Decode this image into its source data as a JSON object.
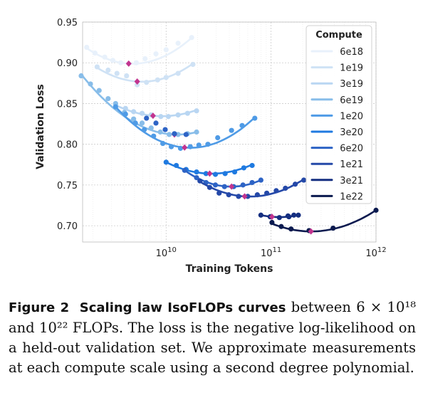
{
  "chart_data": {
    "type": "line",
    "xlabel": "Training Tokens",
    "ylabel": "Validation Loss",
    "xscale": "log",
    "xlim": [
      1600000000.0,
      1000000000000.0
    ],
    "ylim": [
      0.68,
      0.95
    ],
    "yticks": [
      "0.70",
      "0.75",
      "0.80",
      "0.85",
      "0.90",
      "0.95"
    ],
    "xticks": [
      {
        "base": "10",
        "exp": "10",
        "value": 10000000000.0
      },
      {
        "base": "10",
        "exp": "11",
        "value": 100000000000.0
      },
      {
        "base": "10",
        "exp": "12",
        "value": 1000000000000.0
      }
    ],
    "grid": true,
    "legend": {
      "title": "Compute",
      "placement": "top-right"
    },
    "series": [
      {
        "name": "6e18",
        "color": "#e8f1fb",
        "points": [
          [
            1750000000.0,
            0.919
          ],
          [
            2100000000.0,
            0.912
          ],
          [
            2600000000.0,
            0.907
          ],
          [
            3100000000.0,
            0.903
          ],
          [
            3700000000.0,
            0.9
          ],
          [
            4400000000.0,
            0.899
          ],
          [
            5200000000.0,
            0.9
          ],
          [
            6300000000.0,
            0.905
          ],
          [
            8000000000.0,
            0.911
          ],
          [
            10000000000.0,
            0.916
          ],
          [
            13000000000.0,
            0.924
          ],
          [
            17500000000.0,
            0.931
          ]
        ],
        "poly": [
          [
            1750000000.0,
            0.918
          ],
          [
            4400000000.0,
            0.899
          ],
          [
            18000000000.0,
            0.932
          ]
        ],
        "min": [
          4400000000.0,
          0.899
        ]
      },
      {
        "name": "1e19",
        "color": "#cfe2f5",
        "points": [
          [
            2200000000.0,
            0.895
          ],
          [
            2800000000.0,
            0.891
          ],
          [
            3400000000.0,
            0.887
          ],
          [
            4200000000.0,
            0.884
          ],
          [
            5300000000.0,
            0.873
          ],
          [
            6500000000.0,
            0.876
          ],
          [
            8300000000.0,
            0.879
          ],
          [
            10000000000.0,
            0.882
          ],
          [
            13000000000.0,
            0.887
          ],
          [
            18000000000.0,
            0.898
          ]
        ],
        "poly": [
          [
            2200000000.0,
            0.894
          ],
          [
            5300000000.0,
            0.877
          ],
          [
            18000000000.0,
            0.899
          ]
        ],
        "min": [
          5300000000.0,
          0.877
        ]
      },
      {
        "name": "3e19",
        "color": "#b9d6f2",
        "points": [
          [
            3300000000.0,
            0.848
          ],
          [
            4100000000.0,
            0.844
          ],
          [
            4900000000.0,
            0.84
          ],
          [
            5900000000.0,
            0.838
          ],
          [
            7200000000.0,
            0.836
          ],
          [
            8900000000.0,
            0.834
          ],
          [
            10500000000.0,
            0.834
          ],
          [
            13000000000.0,
            0.836
          ],
          [
            16000000000.0,
            0.838
          ],
          [
            19500000000.0,
            0.841
          ]
        ],
        "poly": [
          [
            3300000000.0,
            0.848
          ],
          [
            7500000000.0,
            0.835
          ],
          [
            19500000000.0,
            0.842
          ]
        ],
        "min": [
          7500000000.0,
          0.835
        ]
      },
      {
        "name": "6e19",
        "color": "#88bde9",
        "points": [
          [
            1550000000.0,
            0.884
          ],
          [
            1900000000.0,
            0.874
          ],
          [
            2300000000.0,
            0.866
          ],
          [
            2800000000.0,
            0.856
          ],
          [
            3300000000.0,
            0.85
          ],
          [
            4000000000.0,
            0.839
          ],
          [
            4900000000.0,
            0.831
          ],
          [
            5900000000.0,
            0.826
          ],
          [
            7200000000.0,
            0.82
          ],
          [
            8800000000.0,
            0.815
          ],
          [
            10700000000.0,
            0.812
          ],
          [
            13000000000.0,
            0.812
          ],
          [
            16000000000.0,
            0.813
          ],
          [
            19500000000.0,
            0.815
          ]
        ],
        "poly": [
          [
            1550000000.0,
            0.886
          ],
          [
            12000000000.0,
            0.812
          ],
          [
            19500000000.0,
            0.815
          ]
        ],
        "min": [
          12000000000.0,
          0.812
        ]
      },
      {
        "name": "1e20",
        "color": "#4f9be6",
        "points": [
          [
            3300000000.0,
            0.846
          ],
          [
            4100000000.0,
            0.837
          ],
          [
            5100000000.0,
            0.826
          ],
          [
            6200000000.0,
            0.818
          ],
          [
            7600000000.0,
            0.81
          ],
          [
            9300000000.0,
            0.801
          ],
          [
            11200000000.0,
            0.797
          ],
          [
            13700000000.0,
            0.795
          ],
          [
            17000000000.0,
            0.797
          ],
          [
            20500000000.0,
            0.799
          ],
          [
            25000000000.0,
            0.8
          ],
          [
            31000000000.0,
            0.808
          ],
          [
            42000000000.0,
            0.817
          ],
          [
            53000000000.0,
            0.823
          ],
          [
            70000000000.0,
            0.832
          ]
        ],
        "poly": [
          [
            3300000000.0,
            0.846
          ],
          [
            15000000000.0,
            0.796
          ],
          [
            70000000000.0,
            0.833
          ]
        ],
        "min": [
          15000000000.0,
          0.796
        ]
      },
      {
        "name": "3e20",
        "color": "#1f7ae0",
        "points": [
          [
            10000000000.0,
            0.778
          ],
          [
            12500000000.0,
            0.774
          ],
          [
            15500000000.0,
            0.769
          ],
          [
            19500000000.0,
            0.766
          ],
          [
            24000000000.0,
            0.764
          ],
          [
            29500000000.0,
            0.763
          ],
          [
            36500000000.0,
            0.764
          ],
          [
            45000000000.0,
            0.766
          ],
          [
            55000000000.0,
            0.771
          ],
          [
            66000000000.0,
            0.774
          ]
        ],
        "poly": [
          [
            10000000000.0,
            0.778
          ],
          [
            26000000000.0,
            0.764
          ],
          [
            66000000000.0,
            0.775
          ]
        ],
        "min": [
          26000000000.0,
          0.764
        ]
      },
      {
        "name": "6e20",
        "color": "#2d63c5",
        "points": [
          [
            6500000000.0,
            0.832
          ],
          [
            8000000000.0,
            0.826
          ],
          [
            9800000000.0,
            0.818
          ],
          [
            12000000000.0,
            0.813
          ],
          [
            15500000000.0,
            0.812
          ],
          [
            15000000000.0,
            0.768
          ],
          [
            19500000000.0,
            0.759
          ],
          [
            24000000000.0,
            0.753
          ],
          [
            29500000000.0,
            0.75
          ],
          [
            36000000000.0,
            0.748
          ],
          [
            44000000000.0,
            0.748
          ],
          [
            54000000000.0,
            0.75
          ],
          [
            66000000000.0,
            0.753
          ],
          [
            80000000000.0,
            0.756
          ]
        ],
        "poly": [
          [
            15000000000.0,
            0.768
          ],
          [
            42000000000.0,
            0.748
          ],
          [
            80000000000.0,
            0.756
          ]
        ],
        "min": [
          42000000000.0,
          0.748
        ]
      },
      {
        "name": "1e21",
        "color": "#2448a8",
        "points": [
          [
            21000000000.0,
            0.755
          ],
          [
            26000000000.0,
            0.747
          ],
          [
            32000000000.0,
            0.74
          ],
          [
            39500000000.0,
            0.738
          ],
          [
            49000000000.0,
            0.736
          ],
          [
            60000000000.0,
            0.736
          ],
          [
            74000000000.0,
            0.738
          ],
          [
            91000000000.0,
            0.74
          ],
          [
            112000000000.0,
            0.743
          ],
          [
            137000000000.0,
            0.746
          ],
          [
            170000000000.0,
            0.751
          ],
          [
            205000000000.0,
            0.756
          ]
        ],
        "poly": [
          [
            21000000000.0,
            0.754
          ],
          [
            56000000000.0,
            0.736
          ],
          [
            205000000000.0,
            0.757
          ]
        ],
        "min": [
          56000000000.0,
          0.736
        ]
      },
      {
        "name": "3e21",
        "color": "#142e80",
        "points": [
          [
            80000000000.0,
            0.713
          ],
          [
            98000000000.0,
            0.711
          ],
          [
            120000000000.0,
            0.71
          ],
          [
            148000000000.0,
            0.711
          ],
          [
            182000000000.0,
            0.713
          ],
          [
            145000000000.0,
            0.712
          ],
          [
            165000000000.0,
            0.713
          ]
        ],
        "poly": [
          [
            80000000000.0,
            0.713
          ],
          [
            102000000000.0,
            0.711
          ],
          [
            182000000000.0,
            0.713
          ]
        ],
        "min": [
          102000000000.0,
          0.711
        ]
      },
      {
        "name": "1e22",
        "color": "#0b1a4f",
        "points": [
          [
            102000000000.0,
            0.704
          ],
          [
            125000000000.0,
            0.699
          ],
          [
            155000000000.0,
            0.696
          ],
          [
            230000000000.0,
            0.694
          ],
          [
            390000000000.0,
            0.697
          ],
          [
            1000000000000.0,
            0.719
          ]
        ],
        "poly": [
          [
            100000000000.0,
            0.703
          ],
          [
            240000000000.0,
            0.693
          ],
          [
            1000000000000.0,
            0.719
          ]
        ],
        "min": [
          240000000000.0,
          0.693
        ]
      }
    ]
  },
  "caption": {
    "figure": "Figure 2",
    "title": "Scaling law IsoFLOPs curves",
    "text": "between 6 × 10¹⁸ and 10²² FLOPs. The loss is the negative log-likelihood on a held-out validation set. We approximate measurements at each compute scale using a second degree polynomial."
  },
  "colors": {
    "min_marker": "#c2348f",
    "grid": "#cccccc"
  }
}
